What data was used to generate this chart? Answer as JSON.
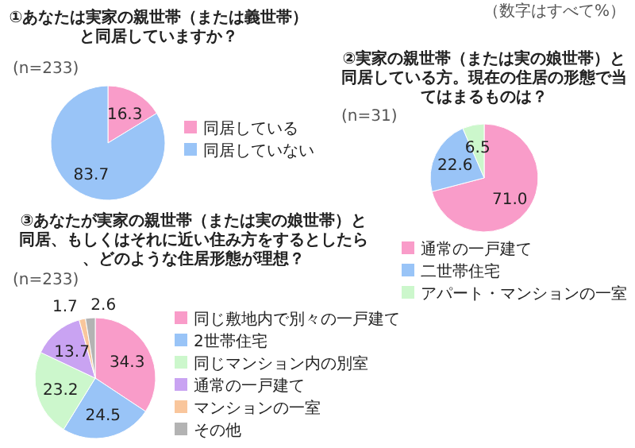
{
  "chart_data": [
    {
      "type": "pie",
      "title": "①あなたは実家の親世帯（または義世帯）と同居していますか？",
      "categories": [
        "同居している",
        "同居していない"
      ],
      "values": [
        16.3,
        83.7
      ],
      "colors": [
        "#f99cc9",
        "#99c4f7"
      ],
      "data_labels": true,
      "legend": "right",
      "annotations": [
        "(n=233)",
        "（数字はすべて%）"
      ]
    },
    {
      "type": "pie",
      "title": "②実家の親世帯（または実の娘世帯）と同居している方。現在の住居の形態で当てはまるものは？",
      "categories": [
        "通常の一戸建て",
        "二世帯住宅",
        "アパート・マンションの一室"
      ],
      "values": [
        71.0,
        22.6,
        6.5
      ],
      "value_labels": [
        "71.0",
        "22.6",
        "6.5"
      ],
      "colors": [
        "#f99cc9",
        "#99c4f7",
        "#ccf7cc"
      ],
      "legend": "bottom",
      "annotations": [
        "(n=31)"
      ]
    },
    {
      "type": "pie",
      "title": "③あなたが実家の親世帯（または実の娘世帯）と同居、もしくはそれに近い住み方をするとしたら、どのような住居形態が理想？",
      "categories": [
        "同じ敷地内で別々の一戸建て",
        "2世帯住宅",
        "同じマンション内の別室",
        "通常の一戸建て",
        "マンションの一室",
        "その他"
      ],
      "values": [
        34.3,
        24.5,
        23.2,
        13.7,
        1.7,
        2.6
      ],
      "colors": [
        "#f99cc9",
        "#99c4f7",
        "#ccf7cc",
        "#c9a3f2",
        "#f9c69c",
        "#b3b3b3"
      ],
      "data_labels": true,
      "legend": "right",
      "annotations": [
        "(n=233)"
      ]
    }
  ]
}
